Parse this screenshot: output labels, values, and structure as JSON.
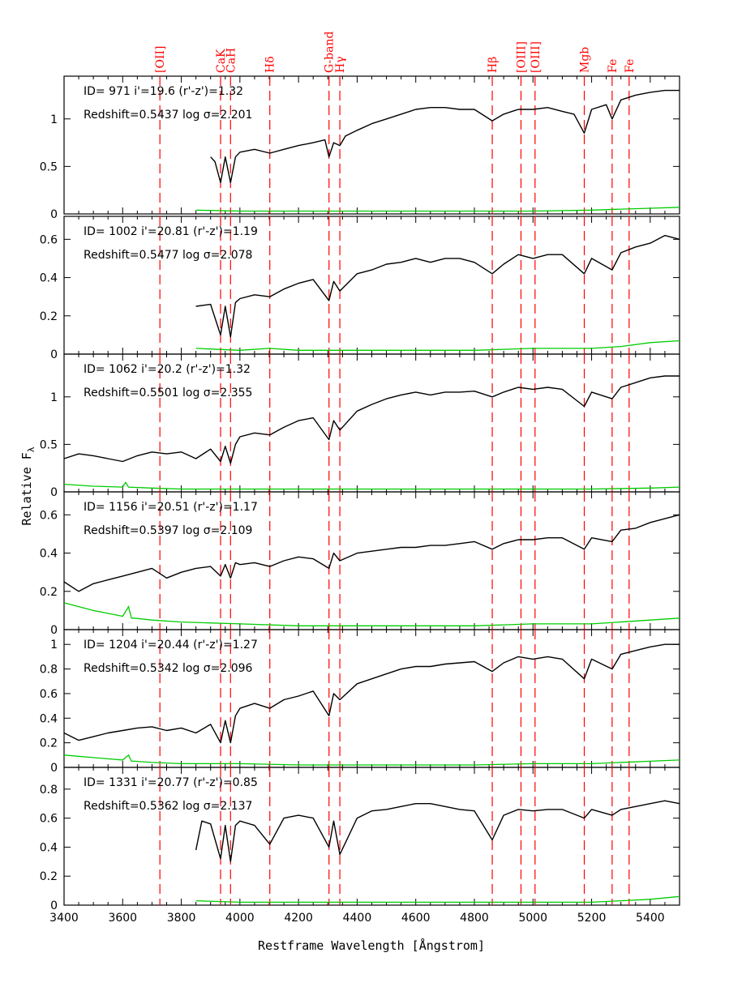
{
  "chart_data": {
    "type": "line",
    "xlabel": "Restframe Wavelength [Ångstrom]",
    "ylabel": "Relative F",
    "ylabel_sub": "λ",
    "xlim": [
      3400,
      5500
    ],
    "x_ticks": [
      3400,
      3600,
      3800,
      4000,
      4200,
      4400,
      4600,
      4800,
      5000,
      5200,
      5400
    ],
    "colors": {
      "spectrum": "#000000",
      "noise": "#00cc00",
      "lines": "#ff0000"
    },
    "lines": [
      {
        "label": "[OII]",
        "x": 3727
      },
      {
        "label": "CaK",
        "x": 3934
      },
      {
        "label": "CaH",
        "x": 3968
      },
      {
        "label": "Hδ",
        "x": 4102
      },
      {
        "label": "G-band",
        "x": 4304
      },
      {
        "label": "Hγ",
        "x": 4341
      },
      {
        "label": "Hβ",
        "x": 4861
      },
      {
        "label": "[OIII]",
        "x": 4959
      },
      {
        "label": "[OIII]",
        "x": 5007
      },
      {
        "label": "Mgb",
        "x": 5175
      },
      {
        "label": "Fe",
        "x": 5270
      },
      {
        "label": "Fe",
        "x": 5328
      }
    ],
    "panels": [
      {
        "id_text": "ID= 971   i'=19.6  (r'-z')=1.32",
        "z_text": "Redshift=0.5437   log σ=2.201",
        "ylim": [
          0,
          1.45
        ],
        "yticks": [
          "0",
          "0.5",
          "1"
        ],
        "ytick_values": [
          0,
          0.5,
          1
        ],
        "spectrum": {
          "x": [
            3900,
            3915,
            3934,
            3950,
            3968,
            3985,
            4000,
            4050,
            4102,
            4150,
            4200,
            4250,
            4290,
            4304,
            4320,
            4341,
            4360,
            4400,
            4450,
            4500,
            4550,
            4600,
            4650,
            4700,
            4750,
            4800,
            4861,
            4900,
            4950,
            5000,
            5050,
            5100,
            5140,
            5175,
            5200,
            5250,
            5270,
            5300,
            5350,
            5400,
            5450,
            5500
          ],
          "y": [
            0.6,
            0.55,
            0.33,
            0.6,
            0.33,
            0.6,
            0.65,
            0.68,
            0.64,
            0.68,
            0.72,
            0.75,
            0.78,
            0.6,
            0.75,
            0.72,
            0.82,
            0.88,
            0.95,
            1.0,
            1.05,
            1.1,
            1.12,
            1.12,
            1.1,
            1.1,
            0.98,
            1.05,
            1.1,
            1.1,
            1.12,
            1.08,
            1.05,
            0.85,
            1.1,
            1.15,
            1.0,
            1.2,
            1.25,
            1.28,
            1.3,
            1.3
          ]
        },
        "noise": {
          "x": [
            3850,
            4000,
            4200,
            4400,
            4600,
            4800,
            5000,
            5200,
            5300,
            5400,
            5500
          ],
          "y": [
            0.04,
            0.03,
            0.03,
            0.03,
            0.03,
            0.03,
            0.03,
            0.04,
            0.05,
            0.06,
            0.07
          ]
        }
      },
      {
        "id_text": "ID= 1002   i'=20.81  (r'-z')=1.19",
        "z_text": "Redshift=0.5477   log σ=2.078",
        "ylim": [
          0,
          0.72
        ],
        "yticks": [
          "0",
          "0.2",
          "0.4",
          "0.6"
        ],
        "ytick_values": [
          0,
          0.2,
          0.4,
          0.6
        ],
        "spectrum": {
          "x": [
            3850,
            3900,
            3934,
            3950,
            3968,
            3985,
            4000,
            4050,
            4102,
            4150,
            4200,
            4250,
            4304,
            4320,
            4341,
            4400,
            4450,
            4500,
            4550,
            4600,
            4650,
            4700,
            4750,
            4800,
            4861,
            4900,
            4950,
            5000,
            5050,
            5100,
            5175,
            5200,
            5270,
            5300,
            5350,
            5400,
            5450,
            5500
          ],
          "y": [
            0.25,
            0.26,
            0.1,
            0.25,
            0.09,
            0.27,
            0.29,
            0.31,
            0.3,
            0.34,
            0.37,
            0.39,
            0.28,
            0.38,
            0.33,
            0.42,
            0.44,
            0.47,
            0.48,
            0.5,
            0.48,
            0.5,
            0.5,
            0.48,
            0.42,
            0.47,
            0.52,
            0.5,
            0.52,
            0.52,
            0.42,
            0.5,
            0.44,
            0.53,
            0.56,
            0.58,
            0.62,
            0.6
          ]
        },
        "noise": {
          "x": [
            3850,
            4000,
            4100,
            4200,
            4400,
            4600,
            4800,
            5000,
            5200,
            5300,
            5400,
            5500
          ],
          "y": [
            0.03,
            0.02,
            0.03,
            0.02,
            0.02,
            0.02,
            0.02,
            0.03,
            0.03,
            0.04,
            0.06,
            0.07
          ]
        }
      },
      {
        "id_text": "ID= 1062   i'=20.2  (r'-z')=1.32",
        "z_text": "Redshift=0.5501   log σ=2.355",
        "ylim": [
          0,
          1.45
        ],
        "yticks": [
          "0",
          "0.5",
          "1"
        ],
        "ytick_values": [
          0,
          0.5,
          1
        ],
        "spectrum": {
          "x": [
            3400,
            3450,
            3500,
            3550,
            3600,
            3650,
            3700,
            3750,
            3800,
            3850,
            3900,
            3934,
            3950,
            3968,
            3985,
            4000,
            4050,
            4102,
            4150,
            4200,
            4250,
            4304,
            4320,
            4341,
            4400,
            4450,
            4500,
            4550,
            4600,
            4650,
            4700,
            4750,
            4800,
            4861,
            4900,
            4950,
            5000,
            5050,
            5100,
            5175,
            5200,
            5270,
            5300,
            5350,
            5400,
            5450,
            5500
          ],
          "y": [
            0.35,
            0.4,
            0.38,
            0.35,
            0.32,
            0.38,
            0.42,
            0.4,
            0.42,
            0.35,
            0.45,
            0.32,
            0.48,
            0.3,
            0.5,
            0.58,
            0.62,
            0.6,
            0.68,
            0.75,
            0.78,
            0.55,
            0.75,
            0.65,
            0.85,
            0.92,
            0.98,
            1.02,
            1.05,
            1.02,
            1.05,
            1.05,
            1.06,
            1.0,
            1.05,
            1.1,
            1.08,
            1.1,
            1.08,
            0.9,
            1.05,
            0.98,
            1.1,
            1.15,
            1.2,
            1.22,
            1.22
          ]
        },
        "noise": {
          "x": [
            3400,
            3500,
            3600,
            3610,
            3620,
            3700,
            3800,
            4000,
            4200,
            4400,
            4600,
            4800,
            5000,
            5200,
            5400,
            5500
          ],
          "y": [
            0.08,
            0.06,
            0.05,
            0.1,
            0.05,
            0.04,
            0.03,
            0.03,
            0.03,
            0.03,
            0.03,
            0.03,
            0.03,
            0.03,
            0.04,
            0.05
          ]
        }
      },
      {
        "id_text": "ID= 1156   i'=20.51  (r'-z')=1.17",
        "z_text": "Redshift=0.5397   log σ=2.109",
        "ylim": [
          0,
          0.72
        ],
        "yticks": [
          "0",
          "0.2",
          "0.4",
          "0.6"
        ],
        "ytick_values": [
          0,
          0.2,
          0.4,
          0.6
        ],
        "spectrum": {
          "x": [
            3400,
            3450,
            3500,
            3550,
            3600,
            3650,
            3700,
            3750,
            3800,
            3850,
            3900,
            3934,
            3950,
            3968,
            3985,
            4000,
            4050,
            4102,
            4150,
            4200,
            4250,
            4304,
            4320,
            4341,
            4400,
            4450,
            4500,
            4550,
            4600,
            4650,
            4700,
            4750,
            4800,
            4861,
            4900,
            4950,
            5000,
            5050,
            5100,
            5175,
            5200,
            5270,
            5300,
            5350,
            5400,
            5450,
            5500
          ],
          "y": [
            0.25,
            0.2,
            0.24,
            0.26,
            0.28,
            0.3,
            0.32,
            0.27,
            0.3,
            0.32,
            0.33,
            0.28,
            0.34,
            0.27,
            0.35,
            0.34,
            0.35,
            0.33,
            0.36,
            0.38,
            0.37,
            0.32,
            0.4,
            0.36,
            0.4,
            0.41,
            0.42,
            0.43,
            0.43,
            0.44,
            0.44,
            0.45,
            0.46,
            0.42,
            0.45,
            0.47,
            0.47,
            0.48,
            0.48,
            0.42,
            0.48,
            0.46,
            0.52,
            0.53,
            0.56,
            0.58,
            0.6
          ]
        },
        "noise": {
          "x": [
            3400,
            3500,
            3600,
            3620,
            3630,
            3640,
            3700,
            3800,
            4000,
            4200,
            4400,
            4600,
            4800,
            5000,
            5200,
            5400,
            5500
          ],
          "y": [
            0.14,
            0.1,
            0.07,
            0.12,
            0.06,
            0.06,
            0.05,
            0.04,
            0.03,
            0.02,
            0.02,
            0.02,
            0.02,
            0.03,
            0.03,
            0.05,
            0.06
          ]
        }
      },
      {
        "id_text": "ID= 1204   i'=20.44  (r'-z')=1.27",
        "z_text": "Redshift=0.5342   log σ=2.096",
        "ylim": [
          0,
          1.12
        ],
        "yticks": [
          "0",
          "0.2",
          "0.4",
          "0.6",
          "0.8",
          "1"
        ],
        "ytick_values": [
          0,
          0.2,
          0.4,
          0.6,
          0.8,
          1
        ],
        "spectrum": {
          "x": [
            3400,
            3450,
            3500,
            3550,
            3600,
            3650,
            3700,
            3750,
            3800,
            3850,
            3900,
            3934,
            3950,
            3968,
            3985,
            4000,
            4050,
            4102,
            4150,
            4200,
            4250,
            4304,
            4320,
            4341,
            4400,
            4450,
            4500,
            4550,
            4600,
            4650,
            4700,
            4750,
            4800,
            4861,
            4900,
            4950,
            5000,
            5050,
            5100,
            5175,
            5200,
            5270,
            5300,
            5350,
            5400,
            5450,
            5500
          ],
          "y": [
            0.28,
            0.22,
            0.25,
            0.28,
            0.3,
            0.32,
            0.33,
            0.3,
            0.32,
            0.28,
            0.35,
            0.2,
            0.38,
            0.2,
            0.42,
            0.48,
            0.52,
            0.48,
            0.55,
            0.58,
            0.62,
            0.42,
            0.6,
            0.55,
            0.68,
            0.72,
            0.76,
            0.8,
            0.82,
            0.82,
            0.84,
            0.85,
            0.86,
            0.78,
            0.85,
            0.9,
            0.88,
            0.9,
            0.88,
            0.72,
            0.88,
            0.8,
            0.92,
            0.95,
            0.98,
            1.0,
            1.0
          ]
        },
        "noise": {
          "x": [
            3400,
            3500,
            3600,
            3620,
            3630,
            3640,
            3700,
            3800,
            4000,
            4200,
            4400,
            4600,
            4800,
            5000,
            5200,
            5400,
            5500
          ],
          "y": [
            0.1,
            0.08,
            0.06,
            0.1,
            0.05,
            0.05,
            0.04,
            0.03,
            0.03,
            0.02,
            0.02,
            0.02,
            0.02,
            0.03,
            0.03,
            0.05,
            0.06
          ]
        }
      },
      {
        "id_text": "ID= 1331   i'=20.77  (r'-z')=0.85",
        "z_text": "Redshift=0.5362   log σ=2.137",
        "ylim": [
          0,
          0.95
        ],
        "yticks": [
          "0",
          "0.2",
          "0.4",
          "0.6",
          "0.8"
        ],
        "ytick_values": [
          0,
          0.2,
          0.4,
          0.6,
          0.8
        ],
        "spectrum": {
          "x": [
            3850,
            3870,
            3900,
            3934,
            3950,
            3968,
            3985,
            4000,
            4050,
            4102,
            4150,
            4200,
            4250,
            4304,
            4320,
            4341,
            4400,
            4450,
            4500,
            4550,
            4600,
            4650,
            4700,
            4750,
            4800,
            4861,
            4900,
            4950,
            5000,
            5050,
            5100,
            5175,
            5200,
            5270,
            5300,
            5350,
            5400,
            5450,
            5500
          ],
          "y": [
            0.38,
            0.58,
            0.56,
            0.32,
            0.55,
            0.3,
            0.55,
            0.58,
            0.55,
            0.42,
            0.6,
            0.62,
            0.6,
            0.4,
            0.58,
            0.35,
            0.6,
            0.65,
            0.66,
            0.68,
            0.7,
            0.7,
            0.68,
            0.66,
            0.65,
            0.45,
            0.62,
            0.66,
            0.65,
            0.66,
            0.66,
            0.6,
            0.66,
            0.62,
            0.66,
            0.68,
            0.7,
            0.72,
            0.7
          ]
        },
        "noise": {
          "x": [
            3850,
            4000,
            4200,
            4400,
            4600,
            4800,
            5000,
            5200,
            5300,
            5400,
            5500
          ],
          "y": [
            0.03,
            0.02,
            0.02,
            0.02,
            0.02,
            0.02,
            0.02,
            0.02,
            0.03,
            0.04,
            0.06
          ]
        }
      }
    ]
  }
}
